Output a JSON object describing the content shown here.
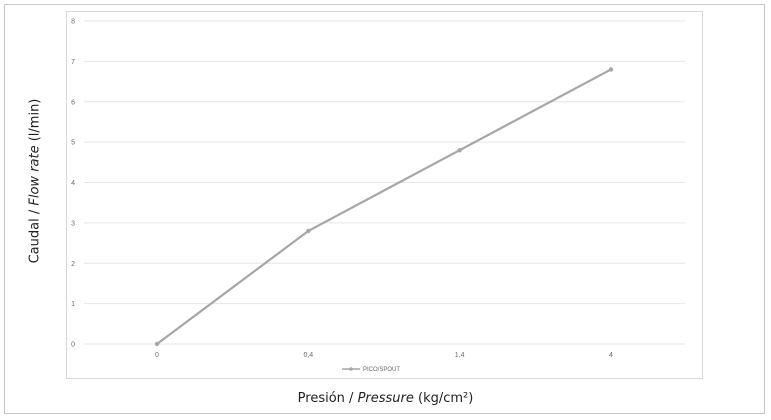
{
  "chart_data": {
    "type": "line",
    "categories": [
      "0",
      "0,4",
      "1,4",
      "4"
    ],
    "series": [
      {
        "name": "PICO/SPOUT",
        "values": [
          0,
          2.8,
          4.8,
          6.8
        ],
        "color": "#a6a6a6"
      }
    ],
    "ylim": [
      0,
      8
    ],
    "yticks": [
      "0",
      "1",
      "2",
      "3",
      "4",
      "5",
      "6",
      "7",
      "8"
    ],
    "ylabel": {
      "main": "Caudal",
      "sep": " / ",
      "alt": "Flow rate",
      "unit": " (l/min)"
    },
    "xlabel": {
      "main": "Presión",
      "sep": " / ",
      "alt": "Pressure",
      "unit": " (kg/cm²)"
    },
    "grid": true,
    "legend": "bottom-center"
  }
}
